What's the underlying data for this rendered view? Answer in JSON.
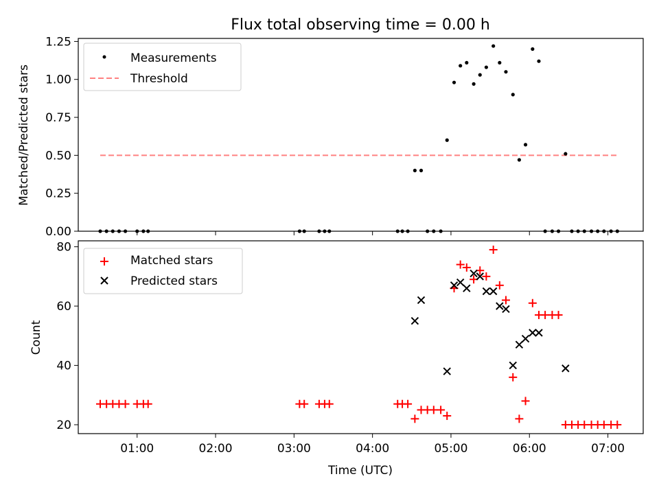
{
  "title": "Flux total observing time = 0.00 h",
  "colors": {
    "matched": "#ff0000",
    "predicted": "#000000",
    "threshold": "#ff8080",
    "measurement": "#000000"
  },
  "chart_data": [
    {
      "type": "scatter",
      "ylabel": "Matched/Predicted stars",
      "xlim": [
        0.25,
        7.45
      ],
      "ylim": [
        0,
        1.27
      ],
      "yticks": [
        0,
        0.25,
        0.5,
        0.75,
        1.0,
        1.25
      ],
      "ytick_labels": [
        "0.00",
        "0.25",
        "0.50",
        "0.75",
        "1.00",
        "1.25"
      ],
      "xticks": [
        1,
        2,
        3,
        4,
        5,
        6,
        7
      ],
      "legend": {
        "position": "top-left",
        "entries": [
          "Measurements",
          "Threshold"
        ]
      },
      "threshold": {
        "value": 0.5,
        "x_range": [
          0.53,
          7.12
        ]
      },
      "series": [
        {
          "name": "Measurements",
          "x": [
            0.53,
            0.61,
            0.69,
            0.77,
            0.85,
            1.0,
            1.08,
            1.14,
            3.07,
            3.13,
            3.32,
            3.39,
            3.45,
            4.32,
            4.38,
            4.45,
            4.54,
            4.62,
            4.7,
            4.78,
            4.87,
            4.95,
            5.04,
            5.12,
            5.2,
            5.29,
            5.37,
            5.45,
            5.54,
            5.62,
            5.7,
            5.79,
            5.87,
            5.95,
            6.04,
            6.12,
            6.2,
            6.29,
            6.37,
            6.46,
            6.54,
            6.62,
            6.7,
            6.79,
            6.87,
            6.95,
            7.04,
            7.12
          ],
          "y": [
            0,
            0,
            0,
            0,
            0,
            0,
            0,
            0,
            0,
            0,
            0,
            0,
            0,
            0,
            0,
            0,
            0.4,
            0.4,
            0,
            0,
            0,
            0.6,
            0.98,
            1.09,
            1.11,
            0.97,
            1.03,
            1.08,
            1.22,
            1.11,
            1.05,
            0.9,
            0.47,
            0.57,
            1.2,
            1.12,
            0,
            0,
            0,
            0.51,
            0,
            0,
            0,
            0,
            0,
            0,
            0,
            0
          ]
        }
      ]
    },
    {
      "type": "scatter",
      "ylabel": "Count",
      "xlabel": "Time (UTC)",
      "xlim": [
        0.25,
        7.45
      ],
      "ylim": [
        17,
        82
      ],
      "yticks": [
        20,
        40,
        60,
        80
      ],
      "ytick_labels": [
        "20",
        "40",
        "60",
        "80"
      ],
      "xticks": [
        1,
        2,
        3,
        4,
        5,
        6,
        7
      ],
      "xtick_labels": [
        "01:00",
        "02:00",
        "03:00",
        "04:00",
        "05:00",
        "06:00",
        "07:00"
      ],
      "legend": {
        "position": "top-left",
        "entries": [
          "Matched stars",
          "Predicted stars"
        ]
      },
      "series": [
        {
          "name": "Matched stars",
          "marker": "plus",
          "x": [
            0.53,
            0.61,
            0.69,
            0.77,
            0.85,
            1.0,
            1.08,
            1.14,
            3.07,
            3.13,
            3.32,
            3.39,
            3.45,
            4.32,
            4.38,
            4.45,
            4.54,
            4.62,
            4.7,
            4.78,
            4.87,
            4.95,
            5.04,
            5.12,
            5.2,
            5.29,
            5.37,
            5.45,
            5.54,
            5.62,
            5.7,
            5.79,
            5.87,
            5.95,
            6.04,
            6.12,
            6.2,
            6.29,
            6.37,
            6.46,
            6.54,
            6.62,
            6.7,
            6.79,
            6.87,
            6.95,
            7.04,
            7.12
          ],
          "y": [
            27,
            27,
            27,
            27,
            27,
            27,
            27,
            27,
            27,
            27,
            27,
            27,
            27,
            27,
            27,
            27,
            22,
            25,
            25,
            25,
            25,
            23,
            66,
            74,
            73,
            69,
            72,
            70,
            79,
            67,
            62,
            36,
            22,
            28,
            61,
            57,
            57,
            57,
            57,
            20,
            20,
            20,
            20,
            20,
            20,
            20,
            20,
            20
          ]
        },
        {
          "name": "Predicted stars",
          "marker": "x",
          "x": [
            4.54,
            4.62,
            4.95,
            5.04,
            5.12,
            5.2,
            5.29,
            5.37,
            5.45,
            5.54,
            5.62,
            5.7,
            5.79,
            5.87,
            5.95,
            6.04,
            6.12,
            6.46
          ],
          "y": [
            55,
            62,
            38,
            67,
            68,
            66,
            71,
            70,
            65,
            65,
            60,
            59,
            40,
            47,
            49,
            51,
            51,
            39
          ]
        }
      ]
    }
  ]
}
